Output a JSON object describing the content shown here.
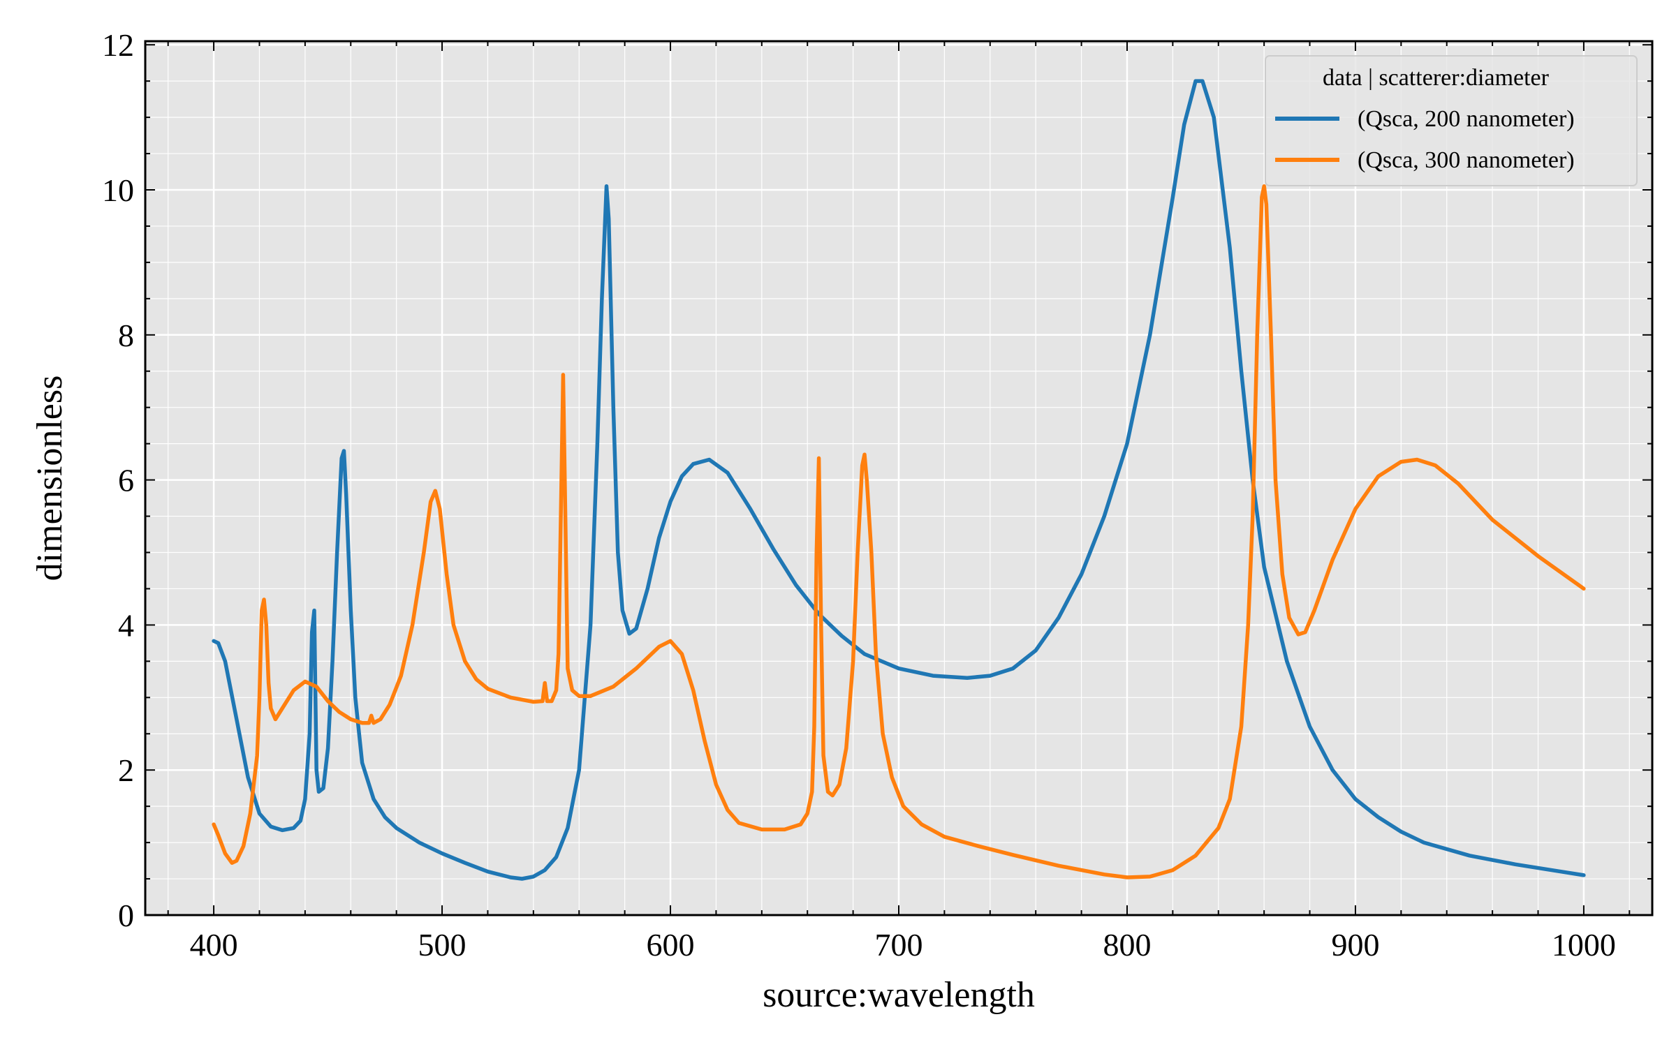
{
  "chart_data": {
    "type": "line",
    "title": "",
    "xlabel": "source:wavelength",
    "ylabel": "dimensionless",
    "xlim": [
      370,
      1030
    ],
    "ylim": [
      0,
      12.05
    ],
    "xticks": [
      400,
      500,
      600,
      700,
      800,
      900,
      1000
    ],
    "yticks": [
      0,
      2,
      4,
      6,
      8,
      10,
      12
    ],
    "grid": true,
    "background": "#e5e5e5",
    "legend": {
      "title": "data | scatterer:diameter",
      "placement": "top-right"
    },
    "series": [
      {
        "name": "(Qsca, 200 nanometer)",
        "color": "#1f77b4",
        "points": [
          [
            400,
            3.78
          ],
          [
            402,
            3.75
          ],
          [
            405,
            3.5
          ],
          [
            410,
            2.7
          ],
          [
            415,
            1.9
          ],
          [
            420,
            1.4
          ],
          [
            425,
            1.22
          ],
          [
            430,
            1.17
          ],
          [
            435,
            1.2
          ],
          [
            438,
            1.3
          ],
          [
            440,
            1.6
          ],
          [
            442,
            2.5
          ],
          [
            443,
            3.9
          ],
          [
            444,
            4.2
          ],
          [
            445,
            2.0
          ],
          [
            446,
            1.7
          ],
          [
            448,
            1.75
          ],
          [
            450,
            2.3
          ],
          [
            452,
            3.5
          ],
          [
            454,
            5.0
          ],
          [
            456,
            6.3
          ],
          [
            457,
            6.4
          ],
          [
            458,
            5.8
          ],
          [
            460,
            4.2
          ],
          [
            462,
            3.0
          ],
          [
            465,
            2.1
          ],
          [
            470,
            1.6
          ],
          [
            475,
            1.35
          ],
          [
            480,
            1.2
          ],
          [
            490,
            1.0
          ],
          [
            500,
            0.85
          ],
          [
            510,
            0.72
          ],
          [
            520,
            0.6
          ],
          [
            530,
            0.52
          ],
          [
            535,
            0.5
          ],
          [
            540,
            0.53
          ],
          [
            545,
            0.62
          ],
          [
            550,
            0.8
          ],
          [
            555,
            1.2
          ],
          [
            560,
            2.0
          ],
          [
            565,
            4.0
          ],
          [
            568,
            6.5
          ],
          [
            570,
            8.5
          ],
          [
            572,
            10.05
          ],
          [
            573,
            9.6
          ],
          [
            575,
            7.0
          ],
          [
            577,
            5.0
          ],
          [
            579,
            4.2
          ],
          [
            582,
            3.88
          ],
          [
            585,
            3.95
          ],
          [
            590,
            4.5
          ],
          [
            595,
            5.2
          ],
          [
            600,
            5.7
          ],
          [
            605,
            6.05
          ],
          [
            610,
            6.22
          ],
          [
            617,
            6.28
          ],
          [
            625,
            6.1
          ],
          [
            635,
            5.6
          ],
          [
            645,
            5.05
          ],
          [
            655,
            4.55
          ],
          [
            665,
            4.15
          ],
          [
            675,
            3.85
          ],
          [
            685,
            3.6
          ],
          [
            700,
            3.4
          ],
          [
            715,
            3.3
          ],
          [
            730,
            3.27
          ],
          [
            740,
            3.3
          ],
          [
            750,
            3.4
          ],
          [
            760,
            3.65
          ],
          [
            770,
            4.1
          ],
          [
            780,
            4.7
          ],
          [
            790,
            5.5
          ],
          [
            800,
            6.5
          ],
          [
            810,
            8.0
          ],
          [
            820,
            9.9
          ],
          [
            825,
            10.9
          ],
          [
            830,
            11.5
          ],
          [
            833,
            11.5
          ],
          [
            838,
            11.0
          ],
          [
            845,
            9.2
          ],
          [
            850,
            7.5
          ],
          [
            855,
            6.0
          ],
          [
            860,
            4.8
          ],
          [
            870,
            3.5
          ],
          [
            880,
            2.6
          ],
          [
            890,
            2.0
          ],
          [
            900,
            1.6
          ],
          [
            910,
            1.35
          ],
          [
            920,
            1.15
          ],
          [
            930,
            1.0
          ],
          [
            950,
            0.82
          ],
          [
            970,
            0.7
          ],
          [
            990,
            0.6
          ],
          [
            1000,
            0.55
          ]
        ]
      },
      {
        "name": "(Qsca, 300 nanometer)",
        "color": "#ff7f0e",
        "points": [
          [
            400,
            1.25
          ],
          [
            402,
            1.1
          ],
          [
            405,
            0.85
          ],
          [
            408,
            0.72
          ],
          [
            410,
            0.75
          ],
          [
            413,
            0.95
          ],
          [
            416,
            1.4
          ],
          [
            419,
            2.2
          ],
          [
            420,
            3.0
          ],
          [
            421,
            4.2
          ],
          [
            422,
            4.35
          ],
          [
            423,
            4.0
          ],
          [
            424,
            3.2
          ],
          [
            425,
            2.85
          ],
          [
            427,
            2.7
          ],
          [
            430,
            2.85
          ],
          [
            435,
            3.1
          ],
          [
            440,
            3.22
          ],
          [
            445,
            3.15
          ],
          [
            450,
            2.95
          ],
          [
            455,
            2.8
          ],
          [
            460,
            2.7
          ],
          [
            465,
            2.65
          ],
          [
            468,
            2.65
          ],
          [
            469,
            2.75
          ],
          [
            470,
            2.65
          ],
          [
            473,
            2.7
          ],
          [
            477,
            2.9
          ],
          [
            482,
            3.3
          ],
          [
            487,
            4.0
          ],
          [
            492,
            5.0
          ],
          [
            495,
            5.7
          ],
          [
            497,
            5.85
          ],
          [
            499,
            5.6
          ],
          [
            502,
            4.7
          ],
          [
            505,
            4.0
          ],
          [
            510,
            3.5
          ],
          [
            515,
            3.25
          ],
          [
            520,
            3.12
          ],
          [
            530,
            3.0
          ],
          [
            540,
            2.94
          ],
          [
            544,
            2.95
          ],
          [
            545,
            3.2
          ],
          [
            546,
            2.95
          ],
          [
            548,
            2.95
          ],
          [
            550,
            3.1
          ],
          [
            551,
            3.6
          ],
          [
            552,
            5.5
          ],
          [
            553,
            7.45
          ],
          [
            554,
            5.5
          ],
          [
            555,
            3.4
          ],
          [
            557,
            3.1
          ],
          [
            560,
            3.02
          ],
          [
            565,
            3.02
          ],
          [
            575,
            3.15
          ],
          [
            585,
            3.4
          ],
          [
            595,
            3.7
          ],
          [
            600,
            3.78
          ],
          [
            605,
            3.6
          ],
          [
            610,
            3.1
          ],
          [
            615,
            2.4
          ],
          [
            620,
            1.8
          ],
          [
            625,
            1.45
          ],
          [
            630,
            1.27
          ],
          [
            640,
            1.18
          ],
          [
            650,
            1.18
          ],
          [
            657,
            1.25
          ],
          [
            660,
            1.4
          ],
          [
            662,
            1.7
          ],
          [
            663,
            2.6
          ],
          [
            664,
            5.0
          ],
          [
            665,
            6.3
          ],
          [
            666,
            4.0
          ],
          [
            667,
            2.2
          ],
          [
            669,
            1.7
          ],
          [
            671,
            1.65
          ],
          [
            674,
            1.8
          ],
          [
            677,
            2.3
          ],
          [
            680,
            3.5
          ],
          [
            682,
            5.0
          ],
          [
            684,
            6.2
          ],
          [
            685,
            6.35
          ],
          [
            686,
            6.0
          ],
          [
            688,
            5.0
          ],
          [
            690,
            3.6
          ],
          [
            693,
            2.5
          ],
          [
            697,
            1.9
          ],
          [
            702,
            1.5
          ],
          [
            710,
            1.25
          ],
          [
            720,
            1.08
          ],
          [
            735,
            0.95
          ],
          [
            750,
            0.83
          ],
          [
            770,
            0.68
          ],
          [
            790,
            0.56
          ],
          [
            800,
            0.52
          ],
          [
            810,
            0.53
          ],
          [
            820,
            0.62
          ],
          [
            830,
            0.82
          ],
          [
            840,
            1.2
          ],
          [
            845,
            1.6
          ],
          [
            850,
            2.6
          ],
          [
            853,
            4.0
          ],
          [
            855,
            5.5
          ],
          [
            857,
            8.0
          ],
          [
            859,
            9.9
          ],
          [
            860,
            10.05
          ],
          [
            861,
            9.8
          ],
          [
            863,
            8.0
          ],
          [
            865,
            6.0
          ],
          [
            868,
            4.7
          ],
          [
            871,
            4.1
          ],
          [
            875,
            3.87
          ],
          [
            878,
            3.9
          ],
          [
            882,
            4.2
          ],
          [
            890,
            4.9
          ],
          [
            900,
            5.6
          ],
          [
            910,
            6.05
          ],
          [
            920,
            6.25
          ],
          [
            927,
            6.28
          ],
          [
            935,
            6.2
          ],
          [
            945,
            5.95
          ],
          [
            960,
            5.45
          ],
          [
            980,
            4.95
          ],
          [
            1000,
            4.5
          ]
        ]
      }
    ]
  }
}
